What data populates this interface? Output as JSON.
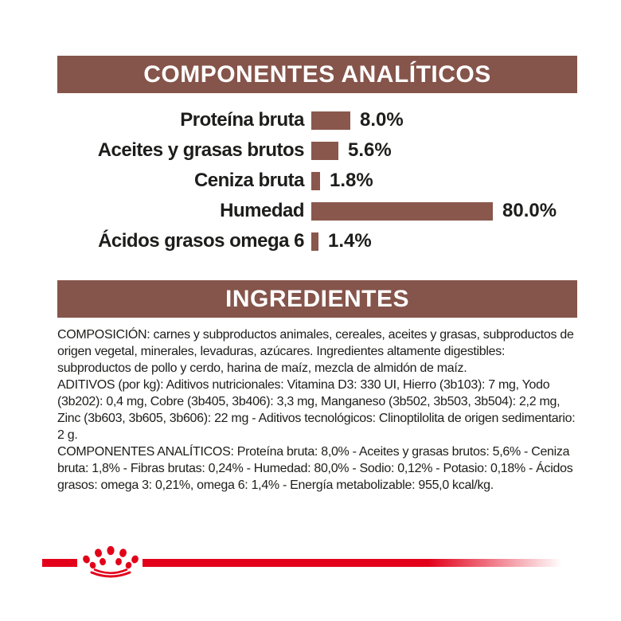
{
  "colors": {
    "band_brown": "#85544A",
    "bar_brown": "#8A574C",
    "brand_red": "#E2001A",
    "text_black": "#1d1d1b"
  },
  "analytics_header": {
    "title": "COMPONENTES ANALÍTICOS"
  },
  "chart_data": {
    "type": "bar",
    "orientation": "horizontal",
    "title": "COMPONENTES ANALÍTICOS",
    "categories": [
      "Proteína bruta",
      "Aceites y grasas brutos",
      "Ceniza bruta",
      "Humedad",
      "Ácidos grasos omega 6"
    ],
    "values": [
      8.0,
      5.6,
      1.8,
      80.0,
      1.4
    ],
    "value_labels": [
      "8.0%",
      "5.6%",
      "1.8%",
      "80.0%",
      "1.4%"
    ],
    "unit": "%",
    "xlim": [
      0,
      80
    ],
    "grid": false,
    "legend": false,
    "bar_color": "#8A574C"
  },
  "ingredients_header": {
    "title": "INGREDIENTES"
  },
  "ingredients_text": {
    "composicion": "COMPOSICIÓN: carnes y subproductos animales, cereales, aceites y grasas, subproductos de origen vegetal, minerales, levaduras, azúcares. Ingredientes altamente digestibles: subproductos de pollo y cerdo, harina de maíz, mezcla de almidón de maíz.",
    "aditivos": "ADITIVOS (por kg): Aditivos nutricionales: Vitamina D3: 330 UI, Hierro (3b103): 7 mg, Yodo (3b202): 0,4 mg, Cobre (3b405, 3b406): 3,3 mg, Manganeso (3b502, 3b503, 3b504): 2,2 mg, Zinc (3b603, 3b605, 3b606): 22 mg - Aditivos tecnológicos: Clinoptilolita de origen sedimentario: 2 g.",
    "componentes": "COMPONENTES ANALÍTICOS: Proteína bruta: 8,0% - Aceites y grasas brutos: 5,6% - Ceniza bruta: 1,8% - Fibras brutas: 0,24% - Humedad: 80,0% - Sodio: 0,12% - Potasio: 0,18% - Ácidos grasos: omega 3: 0,21%, omega 6: 1,4% - Energía metabolizable: 955,0 kcal/kg."
  },
  "footer": {
    "brand_mark": "royal-canin-crown"
  }
}
